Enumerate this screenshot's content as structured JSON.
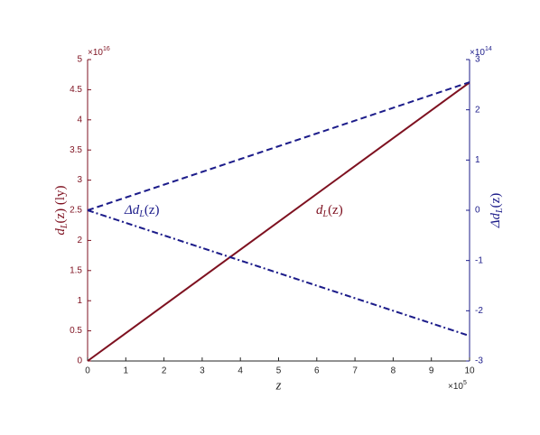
{
  "chart_data": {
    "type": "line",
    "x": [
      0,
      10
    ],
    "xlim": [
      0,
      10
    ],
    "xticks": [
      0,
      1,
      2,
      3,
      4,
      5,
      6,
      7,
      8,
      9,
      10
    ],
    "ylim": [
      0,
      5
    ],
    "yticks": [
      0,
      0.5,
      1,
      1.5,
      2,
      2.5,
      3,
      3.5,
      4,
      4.5,
      5
    ],
    "y2lim": [
      -3,
      3
    ],
    "y2ticks": [
      -3,
      -2,
      -1,
      0,
      1,
      2,
      3
    ],
    "x_multiplier": {
      "base": "×10",
      "exponent": "5"
    },
    "y_multiplier": {
      "base": "×10",
      "exponent": "16"
    },
    "y2_multiplier": {
      "base": "×10",
      "exponent": "14"
    },
    "x_label": "z",
    "y_label": {
      "main": "d",
      "sub": "L",
      "rest": "(z) (ly)"
    },
    "y2_label": {
      "main": "Δd",
      "sub": "L",
      "rest": "(z)"
    },
    "annotations": [
      {
        "main": "Δd",
        "sub": "L",
        "rest": "(z)"
      },
      {
        "main": "d",
        "sub": "L",
        "rest": "(z)"
      }
    ],
    "y_color": "#7e1120",
    "y2_color": "#1c1c8a",
    "series": [
      {
        "color": "#7e1120",
        "dash": "solid",
        "values": [
          0,
          4.62
        ]
      },
      {
        "color": "#1c1c8a",
        "dash": "dash",
        "axis": "y2",
        "values": [
          0,
          2.55
        ]
      },
      {
        "color": "#1c1c8a",
        "dash": "dashdot",
        "axis": "y2",
        "values": [
          0,
          -2.5
        ]
      }
    ]
  }
}
